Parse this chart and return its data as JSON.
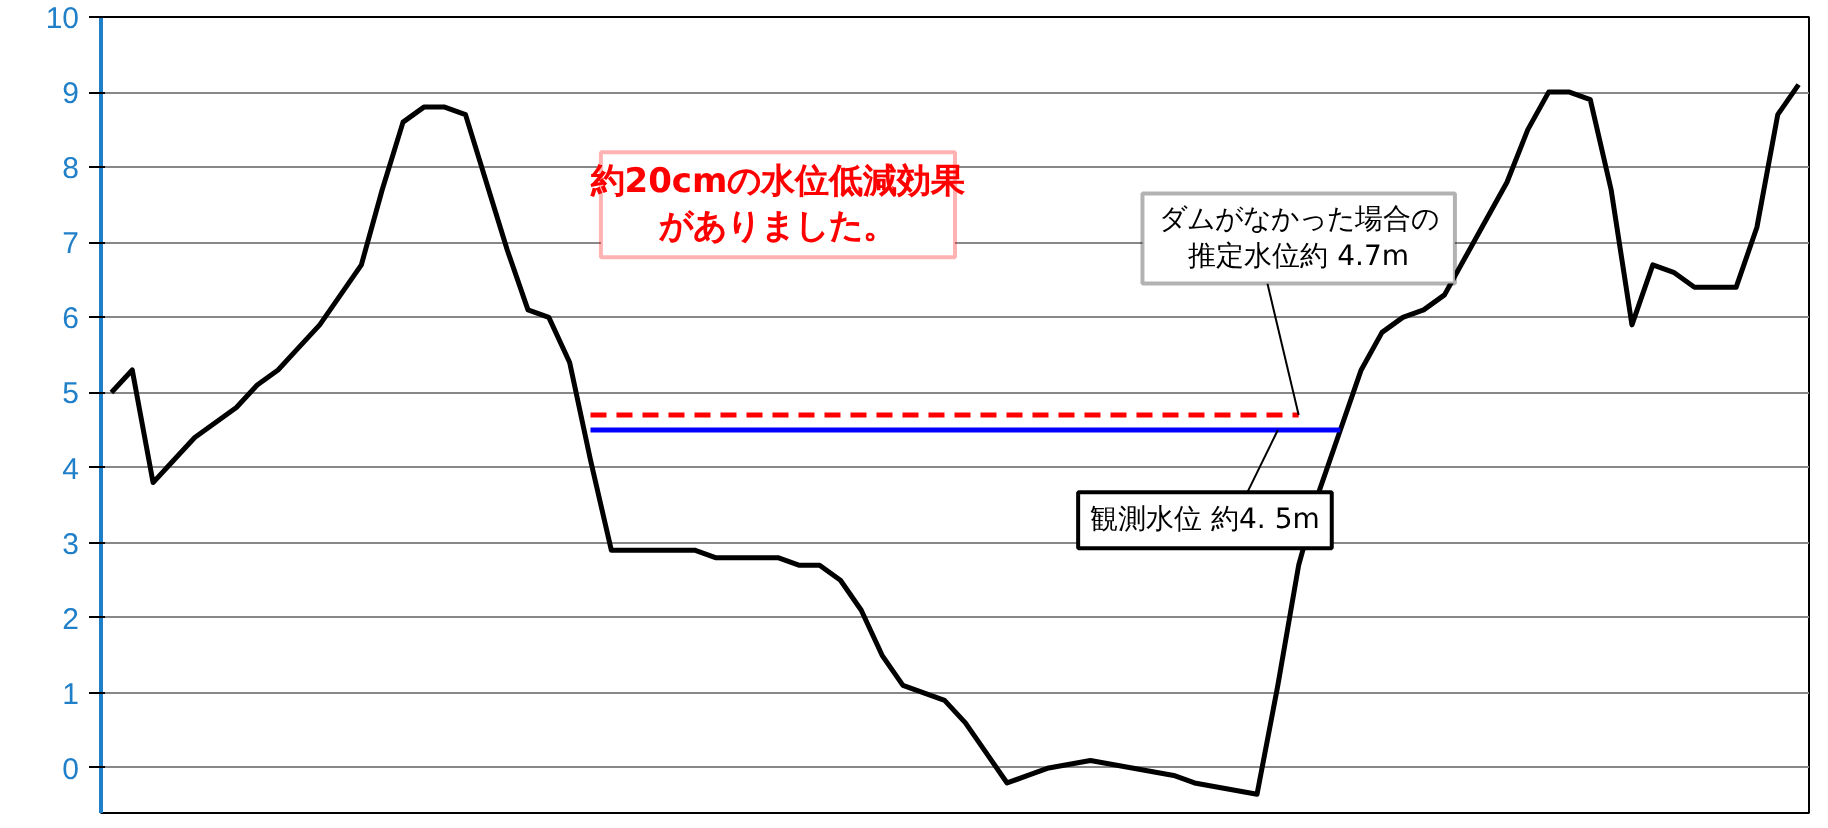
{
  "chart_data": {
    "type": "line",
    "categories": [
      null,
      null,
      null,
      null,
      null,
      null,
      null,
      null,
      null,
      null,
      null,
      null,
      null,
      null,
      null,
      null,
      null,
      null,
      null,
      null,
      null,
      null,
      null,
      null,
      null,
      null,
      null,
      null,
      null,
      null,
      null,
      null,
      null,
      null,
      null,
      null,
      null,
      null,
      null,
      null,
      null,
      null,
      null,
      null,
      null,
      null,
      null,
      null,
      null,
      null,
      null,
      null,
      null,
      null,
      null,
      null,
      null,
      null,
      null,
      null,
      null,
      null,
      null,
      null,
      null,
      null,
      null,
      null,
      null,
      null,
      null,
      null,
      null,
      null,
      null,
      null,
      null,
      null,
      null,
      null,
      null,
      null
    ],
    "series": [
      {
        "color": "#000000",
        "line_style": "solid",
        "values": [
          5.0,
          5.3,
          3.8,
          4.1,
          4.4,
          4.6,
          4.8,
          5.1,
          5.3,
          5.6,
          5.9,
          6.3,
          6.7,
          7.7,
          8.6,
          8.8,
          8.8,
          8.7,
          7.8,
          6.9,
          6.1,
          6.0,
          5.4,
          4.1,
          2.9,
          2.9,
          2.9,
          2.9,
          2.9,
          2.8,
          2.8,
          2.8,
          2.8,
          2.7,
          2.7,
          2.5,
          2.1,
          1.5,
          1.1,
          1.0,
          0.9,
          0.6,
          0.2,
          -0.2,
          -0.1,
          0.0,
          0.05,
          0.1,
          0.05,
          0.0,
          -0.05,
          -0.1,
          -0.2,
          -0.25,
          -0.3,
          -0.35,
          1.1,
          2.7,
          3.7,
          4.5,
          5.3,
          5.8,
          6.0,
          6.1,
          6.3,
          6.8,
          7.3,
          7.8,
          8.5,
          9.0,
          9.0,
          8.9,
          7.7,
          5.9,
          6.7,
          6.6,
          6.4,
          6.4,
          6.4,
          7.2,
          8.7,
          9.1
        ]
      },
      {
        "color": "#ff0000",
        "line_style": "dashed",
        "values": [
          null,
          null,
          null,
          null,
          null,
          null,
          null,
          null,
          null,
          null,
          null,
          null,
          null,
          null,
          null,
          null,
          null,
          null,
          null,
          null,
          null,
          null,
          null,
          4.7,
          4.7,
          4.7,
          4.7,
          4.7,
          4.7,
          4.7,
          4.7,
          4.7,
          4.7,
          4.7,
          4.7,
          4.7,
          4.7,
          4.7,
          4.7,
          4.7,
          4.7,
          4.7,
          4.7,
          4.7,
          4.7,
          4.7,
          4.7,
          4.7,
          4.7,
          4.7,
          4.7,
          4.7,
          4.7,
          4.7,
          4.7,
          4.7,
          4.7,
          4.7,
          null,
          null,
          null,
          null,
          null,
          null,
          null,
          null,
          null,
          null,
          null,
          null,
          null,
          null,
          null,
          null,
          null,
          null,
          null,
          null,
          null,
          null,
          null,
          null
        ]
      },
      {
        "color": "#0000ff",
        "line_style": "solid",
        "values": [
          null,
          null,
          null,
          null,
          null,
          null,
          null,
          null,
          null,
          null,
          null,
          null,
          null,
          null,
          null,
          null,
          null,
          null,
          null,
          null,
          null,
          null,
          null,
          4.5,
          4.5,
          4.5,
          4.5,
          4.5,
          4.5,
          4.5,
          4.5,
          4.5,
          4.5,
          4.5,
          4.5,
          4.5,
          4.5,
          4.5,
          4.5,
          4.5,
          4.5,
          4.5,
          4.5,
          4.5,
          4.5,
          4.5,
          4.5,
          4.5,
          4.5,
          4.5,
          4.5,
          4.5,
          4.5,
          4.5,
          4.5,
          4.5,
          4.5,
          4.5,
          4.5,
          4.5,
          null,
          null,
          null,
          null,
          null,
          null,
          null,
          null,
          null,
          null,
          null,
          null,
          null,
          null,
          null,
          null,
          null,
          null,
          null,
          null,
          null,
          null
        ]
      }
    ],
    "annotations": [
      {
        "text": "約20cmの水位低減効果"
      },
      {
        "text": "がありました。"
      },
      {
        "text": "ダムがなかった場合の"
      },
      {
        "text": "推定水位約 4.7m",
        "y": 4.7
      },
      {
        "text": "観測水位 約4. 5m",
        "y": 4.5
      }
    ],
    "ylim": [
      -0.6,
      10
    ],
    "yticks": [
      0,
      1,
      2,
      3,
      4,
      5,
      6,
      7,
      8,
      9,
      10
    ],
    "grid": "y",
    "tick_labels": "y"
  }
}
